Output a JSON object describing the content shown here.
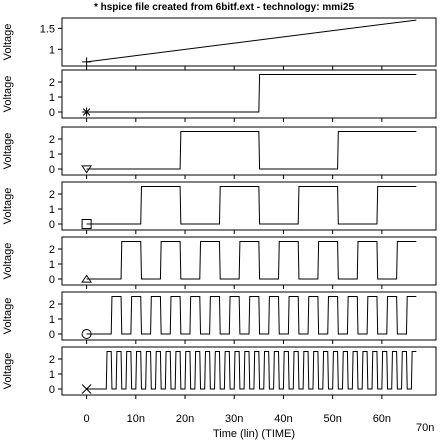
{
  "chart_data": {
    "type": "line",
    "title": "* hspice file created from 6bitf.ext - technology: mmi25",
    "xlabel": "Time (lin) (TIME)",
    "x_unit": "ns",
    "xlim": [
      -5,
      71
    ],
    "x_ticks": [
      0,
      10,
      20,
      30,
      40,
      50,
      60
    ],
    "x_tick_labels": [
      "0",
      "10n",
      "20n",
      "30n",
      "40n",
      "50n",
      "60n"
    ],
    "x_end_label": "70n",
    "panels": [
      {
        "ylabel": "Voltage",
        "ylim": [
          0.6,
          1.75
        ],
        "y_ticks": [
          1,
          1.5
        ],
        "y_tick_labels": [
          "1",
          "1.5"
        ],
        "marker": "plus",
        "kind": "ramp",
        "ramp": {
          "t_start": 0,
          "t_end": 67,
          "v_start": 0.7,
          "v_end": 1.7
        }
      },
      {
        "ylabel": "Voltage",
        "ylim": [
          -0.4,
          2.8
        ],
        "y_ticks": [
          0,
          1,
          2
        ],
        "y_tick_labels": [
          "0",
          "1",
          "2"
        ],
        "marker": "asterisk",
        "kind": "square",
        "low": 0,
        "high": 2.5,
        "t_start": 0,
        "t_end": 67,
        "edges": [
          35
        ]
      },
      {
        "ylabel": "Voltage",
        "ylim": [
          -0.4,
          2.8
        ],
        "y_ticks": [
          0,
          1,
          2
        ],
        "y_tick_labels": [
          "0",
          "1",
          "2"
        ],
        "marker": "triangle-down",
        "kind": "square",
        "low": 0,
        "high": 2.5,
        "t_start": 0,
        "t_end": 67,
        "edges": [
          19,
          35,
          51
        ]
      },
      {
        "ylabel": "Voltage",
        "ylim": [
          -0.4,
          2.8
        ],
        "y_ticks": [
          0,
          1,
          2
        ],
        "y_tick_labels": [
          "0",
          "1",
          "2"
        ],
        "marker": "square",
        "kind": "square",
        "low": 0,
        "high": 2.5,
        "t_start": 0,
        "t_end": 67,
        "edges": [
          11,
          19,
          27,
          35,
          43,
          51,
          59
        ]
      },
      {
        "ylabel": "Voltage",
        "ylim": [
          -0.4,
          2.8
        ],
        "y_ticks": [
          0,
          1,
          2
        ],
        "y_tick_labels": [
          "0",
          "1",
          "2"
        ],
        "marker": "triangle-up",
        "kind": "square",
        "low": 0,
        "high": 2.5,
        "t_start": 0,
        "t_end": 67,
        "edges": [
          7,
          11,
          15,
          19,
          23,
          27,
          31,
          35,
          39,
          43,
          47,
          51,
          55,
          59,
          63
        ]
      },
      {
        "ylabel": "Voltage",
        "ylim": [
          -0.4,
          2.8
        ],
        "y_ticks": [
          0,
          1,
          2
        ],
        "y_tick_labels": [
          "0",
          "1",
          "2"
        ],
        "marker": "circle",
        "kind": "square",
        "low": 0,
        "high": 2.5,
        "t_start": 0,
        "t_end": 67,
        "edges": [
          5,
          7,
          9,
          11,
          13,
          15,
          17,
          19,
          21,
          23,
          25,
          27,
          29,
          31,
          33,
          35,
          37,
          39,
          41,
          43,
          45,
          47,
          49,
          51,
          53,
          55,
          57,
          59,
          61,
          63,
          65
        ]
      },
      {
        "ylabel": "Voltage",
        "ylim": [
          -0.4,
          2.8
        ],
        "y_ticks": [
          0,
          1,
          2
        ],
        "y_tick_labels": [
          "0",
          "1",
          "2"
        ],
        "marker": "x",
        "kind": "square",
        "low": 0,
        "high": 2.5,
        "t_start": 0,
        "t_end": 67,
        "edges": [
          4,
          5,
          6,
          7,
          8,
          9,
          10,
          11,
          12,
          13,
          14,
          15,
          16,
          17,
          18,
          19,
          20,
          21,
          22,
          23,
          24,
          25,
          26,
          27,
          28,
          29,
          30,
          31,
          32,
          33,
          34,
          35,
          36,
          37,
          38,
          39,
          40,
          41,
          42,
          43,
          44,
          45,
          46,
          47,
          48,
          49,
          50,
          51,
          52,
          53,
          54,
          55,
          56,
          57,
          58,
          59,
          60,
          61,
          62,
          63,
          64,
          65,
          66
        ]
      }
    ]
  }
}
